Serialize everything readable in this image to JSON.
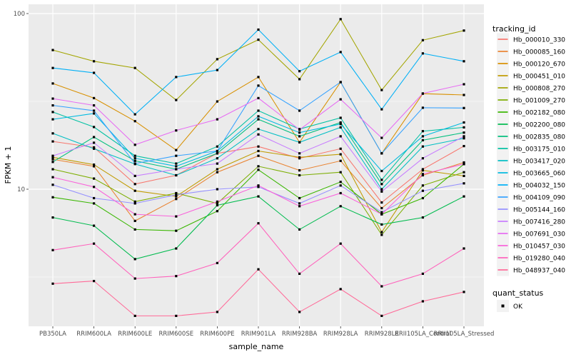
{
  "figure": {
    "background": "#FFFFFF",
    "panel_background": "#EBEBEB",
    "grid_color": "#FFFFFF",
    "tick_color": "#333333",
    "axis_text_color": "#4D4D4D",
    "point_color": "#000000",
    "legend_key_background": "#F2F2F2"
  },
  "chart_data": {
    "type": "line",
    "title": "",
    "xlabel": "sample_name",
    "ylabel": "FPKM + 1",
    "y_scale": "log10",
    "y_ticks": [
      100,
      10
    ],
    "y_ticks_display": [
      "100",
      "10"
    ],
    "y_minor_ticks": [
      31.623,
      3.162
    ],
    "ylim": [
      1.66,
      113
    ],
    "grid": true,
    "legend_position": "right",
    "point_shape": "filled-square",
    "categories": [
      "PB350LA",
      "RRIM600LA",
      "RRIM600LE",
      "RRIM600SE",
      "RRIM600PE",
      "RRIM901LA",
      "RRIM928BA",
      "RRIM928LA",
      "RRIM928LE",
      "RRII105LA_Control",
      "RRII105LA_Stressed"
    ],
    "legend": {
      "title": "tracking_id"
    },
    "legend2": {
      "title": "quant_status",
      "items": [
        {
          "label": "OK",
          "shape": "filled-square",
          "color": "#000000"
        }
      ]
    },
    "series": [
      {
        "name": "Hb_000010_330",
        "color": "#F8766D",
        "values": [
          18.7,
          17.3,
          10.7,
          12.0,
          16.0,
          17.5,
          15.0,
          17.0,
          8.4,
          13.0,
          17.6
        ]
      },
      {
        "name": "Hb_000085_160",
        "color": "#EA8331",
        "values": [
          14.8,
          13.5,
          6.6,
          8.8,
          12.5,
          15.5,
          12.8,
          14.5,
          7.8,
          12.0,
          14.2
        ]
      },
      {
        "name": "Hb_000120_670",
        "color": "#D89000",
        "values": [
          40.0,
          33.0,
          24.4,
          16.7,
          31.6,
          43.5,
          18.5,
          40.7,
          16.0,
          35.0,
          34.4
        ]
      },
      {
        "name": "Hb_000451_010",
        "color": "#C09B00",
        "values": [
          15.2,
          13.8,
          9.8,
          9.1,
          13.0,
          16.5,
          15.2,
          15.8,
          5.7,
          12.8,
          11.9
        ]
      },
      {
        "name": "Hb_000808_270",
        "color": "#A3A500",
        "values": [
          62.0,
          53.5,
          49.0,
          32.2,
          55.0,
          71.0,
          42.3,
          93.0,
          36.7,
          70.5,
          80.0
        ]
      },
      {
        "name": "Hb_001009_270",
        "color": "#7CAE00",
        "values": [
          13.0,
          11.5,
          8.5,
          9.5,
          8.3,
          13.5,
          12.0,
          12.5,
          5.5,
          10.5,
          12.5
        ]
      },
      {
        "name": "Hb_002182_080",
        "color": "#39B600",
        "values": [
          9.0,
          8.3,
          5.9,
          5.8,
          7.5,
          12.9,
          8.9,
          11.0,
          7.2,
          8.9,
          13.9
        ]
      },
      {
        "name": "Hb_002200_080",
        "color": "#00BB4E",
        "values": [
          6.9,
          6.2,
          4.0,
          4.6,
          8.1,
          9.1,
          5.9,
          8.0,
          6.3,
          6.9,
          9.1
        ]
      },
      {
        "name": "Hb_002835_080",
        "color": "#00BF7D",
        "values": [
          14.3,
          19.8,
          14.5,
          13.0,
          16.0,
          25.0,
          20.0,
          24.0,
          10.7,
          19.0,
          21.0
        ]
      },
      {
        "name": "Hb_003175_010",
        "color": "#00C1A3",
        "values": [
          27.5,
          22.6,
          15.5,
          14.0,
          17.5,
          28.0,
          22.0,
          25.5,
          11.3,
          21.4,
          22.5
        ]
      },
      {
        "name": "Hb_003417_020",
        "color": "#00BFC4",
        "values": [
          20.8,
          17.0,
          13.9,
          12.0,
          15.0,
          22.0,
          18.5,
          22.5,
          10.0,
          17.5,
          19.5
        ]
      },
      {
        "name": "Hb_003665_060",
        "color": "#00BAE0",
        "values": [
          25.0,
          27.0,
          15.0,
          13.5,
          16.5,
          26.0,
          21.0,
          23.5,
          12.7,
          20.0,
          24.0
        ]
      },
      {
        "name": "Hb_004032_150",
        "color": "#00B0F6",
        "values": [
          49.0,
          46.0,
          26.7,
          43.5,
          47.7,
          81.0,
          47.0,
          60.4,
          28.5,
          59.3,
          53.5
        ]
      },
      {
        "name": "Hb_004109_090",
        "color": "#35A2FF",
        "values": [
          30.0,
          28.0,
          14.0,
          15.5,
          16.5,
          38.9,
          28.0,
          40.7,
          16.0,
          29.1,
          29.0
        ]
      },
      {
        "name": "Hb_005144_160",
        "color": "#9590FF",
        "values": [
          10.6,
          8.9,
          8.3,
          9.3,
          10.0,
          10.3,
          8.3,
          10.5,
          7.4,
          9.8,
          10.8
        ]
      },
      {
        "name": "Hb_007416_280",
        "color": "#C77CFF",
        "values": [
          15.5,
          18.4,
          11.9,
          13.0,
          14.0,
          20.5,
          16.0,
          20.0,
          9.7,
          15.0,
          20.0
        ]
      },
      {
        "name": "Hb_007691_030",
        "color": "#E76BF3",
        "values": [
          32.8,
          30.0,
          17.9,
          21.6,
          25.0,
          33.0,
          21.8,
          32.5,
          19.6,
          35.1,
          39.6
        ]
      },
      {
        "name": "Hb_010457_030",
        "color": "#FA62DB",
        "values": [
          11.7,
          10.3,
          7.2,
          7.0,
          8.5,
          10.5,
          8.0,
          9.5,
          7.2,
          12.2,
          13.9
        ]
      },
      {
        "name": "Hb_019280_040",
        "color": "#FF62BC",
        "values": [
          4.5,
          4.9,
          3.1,
          3.2,
          3.8,
          6.4,
          3.3,
          4.9,
          2.8,
          3.3,
          4.6
        ]
      },
      {
        "name": "Hb_048937_040",
        "color": "#FF6A98",
        "values": [
          2.9,
          3.0,
          1.9,
          1.9,
          2.0,
          3.5,
          2.0,
          2.7,
          1.9,
          2.3,
          2.6
        ]
      }
    ]
  }
}
